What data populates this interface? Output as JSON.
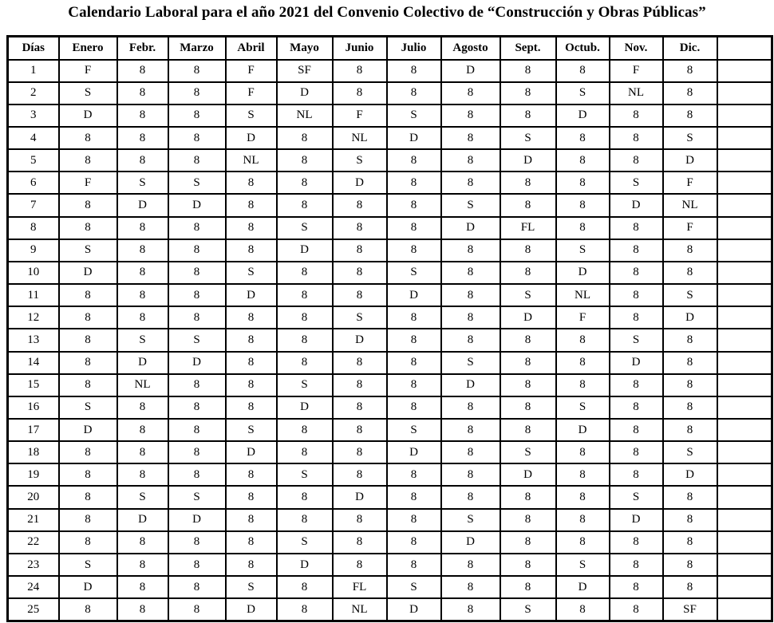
{
  "title": "Calendario Laboral para el año 2021 del Convenio Colectivo de “Construcción y Obras Públicas”",
  "table": {
    "headers": [
      "Días",
      "Enero",
      "Febr.",
      "Marzo",
      "Abril",
      "Mayo",
      "Junio",
      "Julio",
      "Agosto",
      "Sept.",
      "Octub.",
      "Nov.",
      "Dic.",
      ""
    ],
    "rows": [
      {
        "day": "1",
        "values": [
          "F",
          "8",
          "8",
          "F",
          "SF",
          "8",
          "8",
          "D",
          "8",
          "8",
          "F",
          "8"
        ]
      },
      {
        "day": "2",
        "values": [
          "S",
          "8",
          "8",
          "F",
          "D",
          "8",
          "8",
          "8",
          "8",
          "S",
          "NL",
          "8"
        ]
      },
      {
        "day": "3",
        "values": [
          "D",
          "8",
          "8",
          "S",
          "NL",
          "F",
          "S",
          "8",
          "8",
          "D",
          "8",
          "8"
        ]
      },
      {
        "day": "4",
        "values": [
          "8",
          "8",
          "8",
          "D",
          "8",
          "NL",
          "D",
          "8",
          "S",
          "8",
          "8",
          "S"
        ]
      },
      {
        "day": "5",
        "values": [
          "8",
          "8",
          "8",
          "NL",
          "8",
          "S",
          "8",
          "8",
          "D",
          "8",
          "8",
          "D"
        ]
      },
      {
        "day": "6",
        "values": [
          "F",
          "S",
          "S",
          "8",
          "8",
          "D",
          "8",
          "8",
          "8",
          "8",
          "S",
          "F"
        ]
      },
      {
        "day": "7",
        "values": [
          "8",
          "D",
          "D",
          "8",
          "8",
          "8",
          "8",
          "S",
          "8",
          "8",
          "D",
          "NL"
        ]
      },
      {
        "day": "8",
        "values": [
          "8",
          "8",
          "8",
          "8",
          "S",
          "8",
          "8",
          "D",
          "FL",
          "8",
          "8",
          "F"
        ]
      },
      {
        "day": "9",
        "values": [
          "S",
          "8",
          "8",
          "8",
          "D",
          "8",
          "8",
          "8",
          "8",
          "S",
          "8",
          "8"
        ]
      },
      {
        "day": "10",
        "values": [
          "D",
          "8",
          "8",
          "S",
          "8",
          "8",
          "S",
          "8",
          "8",
          "D",
          "8",
          "8"
        ]
      },
      {
        "day": "11",
        "values": [
          "8",
          "8",
          "8",
          "D",
          "8",
          "8",
          "D",
          "8",
          "S",
          "NL",
          "8",
          "S"
        ]
      },
      {
        "day": "12",
        "values": [
          "8",
          "8",
          "8",
          "8",
          "8",
          "S",
          "8",
          "8",
          "D",
          "F",
          "8",
          "D"
        ]
      },
      {
        "day": "13",
        "values": [
          "8",
          "S",
          "S",
          "8",
          "8",
          "D",
          "8",
          "8",
          "8",
          "8",
          "S",
          "8"
        ]
      },
      {
        "day": "14",
        "values": [
          "8",
          "D",
          "D",
          "8",
          "8",
          "8",
          "8",
          "S",
          "8",
          "8",
          "D",
          "8"
        ]
      },
      {
        "day": "15",
        "values": [
          "8",
          "NL",
          "8",
          "8",
          "S",
          "8",
          "8",
          "D",
          "8",
          "8",
          "8",
          "8"
        ]
      },
      {
        "day": "16",
        "values": [
          "S",
          "8",
          "8",
          "8",
          "D",
          "8",
          "8",
          "8",
          "8",
          "S",
          "8",
          "8"
        ]
      },
      {
        "day": "17",
        "values": [
          "D",
          "8",
          "8",
          "S",
          "8",
          "8",
          "S",
          "8",
          "8",
          "D",
          "8",
          "8"
        ]
      },
      {
        "day": "18",
        "values": [
          "8",
          "8",
          "8",
          "D",
          "8",
          "8",
          "D",
          "8",
          "S",
          "8",
          "8",
          "S"
        ]
      },
      {
        "day": "19",
        "values": [
          "8",
          "8",
          "8",
          "8",
          "S",
          "8",
          "8",
          "8",
          "D",
          "8",
          "8",
          "D"
        ]
      },
      {
        "day": "20",
        "values": [
          "8",
          "S",
          "S",
          "8",
          "8",
          "D",
          "8",
          "8",
          "8",
          "8",
          "S",
          "8"
        ]
      },
      {
        "day": "21",
        "values": [
          "8",
          "D",
          "D",
          "8",
          "8",
          "8",
          "8",
          "S",
          "8",
          "8",
          "D",
          "8"
        ]
      },
      {
        "day": "22",
        "values": [
          "8",
          "8",
          "8",
          "8",
          "S",
          "8",
          "8",
          "D",
          "8",
          "8",
          "8",
          "8"
        ]
      },
      {
        "day": "23",
        "values": [
          "S",
          "8",
          "8",
          "8",
          "D",
          "8",
          "8",
          "8",
          "8",
          "S",
          "8",
          "8"
        ]
      },
      {
        "day": "24",
        "values": [
          "D",
          "8",
          "8",
          "S",
          "8",
          "FL",
          "S",
          "8",
          "8",
          "D",
          "8",
          "8"
        ]
      },
      {
        "day": "25",
        "values": [
          "8",
          "8",
          "8",
          "D",
          "8",
          "NL",
          "D",
          "8",
          "S",
          "8",
          "8",
          "SF"
        ]
      }
    ]
  }
}
